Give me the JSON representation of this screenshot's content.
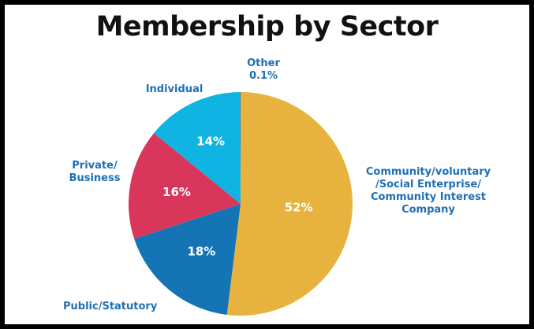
{
  "chart_data": {
    "type": "pie",
    "title": "Membership by Sector",
    "slices": [
      {
        "label": [
          "Community/voluntary",
          "/Social Enterprise/",
          "Community Interest",
          "Company"
        ],
        "percent_label": "52%",
        "value": 52,
        "color": "#e8b23f"
      },
      {
        "label": [
          "Public/Statutory"
        ],
        "percent_label": "18%",
        "value": 18,
        "color": "#1474b4"
      },
      {
        "label": [
          "Private/",
          "Business"
        ],
        "percent_label": "16%",
        "value": 16,
        "color": "#d9365c"
      },
      {
        "label": [
          "Individual"
        ],
        "percent_label": "14%",
        "value": 14,
        "color": "#10b4e2"
      },
      {
        "label": [
          "Other",
          "0.1%"
        ],
        "percent_label": "",
        "value": 0.1,
        "color": "#1e6fb5"
      }
    ],
    "label_color": "#1e6fb5"
  }
}
